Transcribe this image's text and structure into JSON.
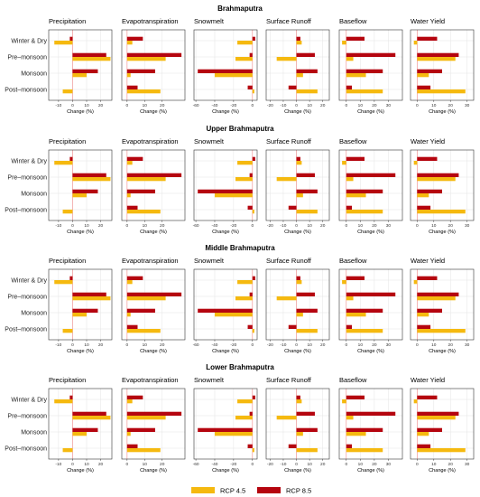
{
  "colors": {
    "rcp45": "#f5b90f",
    "rcp85": "#b5050f",
    "zero": "#f39a9a",
    "grid": "#e4e4e4",
    "frame": "#333333"
  },
  "legend": {
    "items": [
      "RCP 4.5",
      "RCP 8.5"
    ]
  },
  "chart_data": {
    "type": "bar",
    "orientation": "horizontal",
    "xlabel": "Change (%)",
    "categories": [
      "Winter & Dry",
      "Pre–monsoon",
      "Monsoon",
      "Post–monsoon"
    ],
    "series_names": [
      "RCP 4.5",
      "RCP 8.5"
    ],
    "variables": [
      {
        "name": "Precipitation",
        "xlim": [
          -17,
          28
        ],
        "ticks": [
          -10,
          0,
          10,
          20
        ]
      },
      {
        "name": "Evapotranspiration",
        "xlim": [
          -3,
          33
        ],
        "ticks": [
          0,
          10,
          20
        ]
      },
      {
        "name": "Snowmelt",
        "xlim": [
          -62,
          5
        ],
        "ticks": [
          -60,
          -40,
          -20,
          0
        ]
      },
      {
        "name": "Surface Runoff",
        "xlim": [
          -23,
          25
        ],
        "ticks": [
          -20,
          -10,
          0,
          10,
          20
        ]
      },
      {
        "name": "Baseflow",
        "xlim": [
          -5,
          40
        ],
        "ticks": [
          0,
          10,
          20,
          30
        ]
      },
      {
        "name": "Water Yield",
        "xlim": [
          -4,
          34
        ],
        "ticks": [
          0,
          10,
          20,
          30
        ]
      }
    ],
    "regions": [
      {
        "title": "Brahmaputra",
        "data": {
          "Precipitation": {
            "rcp45": [
              -13,
              27,
              10,
              -7
            ],
            "rcp85": [
              -2,
              24,
              18,
              0
            ]
          },
          "Evapotranspiration": {
            "rcp45": [
              3,
              22,
              2,
              19
            ],
            "rcp85": [
              9,
              31,
              16,
              6
            ]
          },
          "Snowmelt": {
            "rcp45": [
              -16,
              -18,
              -40,
              2
            ],
            "rcp85": [
              3,
              -3,
              -58,
              -5
            ]
          },
          "Surface Runoff": {
            "rcp45": [
              4,
              -15,
              5,
              16
            ],
            "rcp85": [
              3,
              14,
              16,
              -6
            ]
          },
          "Baseflow": {
            "rcp45": [
              -3,
              5,
              14,
              26
            ],
            "rcp85": [
              13,
              35,
              26,
              4
            ]
          },
          "Water Yield": {
            "rcp45": [
              -2,
              23,
              7,
              29
            ],
            "rcp85": [
              12,
              25,
              15,
              8
            ]
          }
        }
      },
      {
        "title": "Upper Brahmaputra",
        "data": {
          "Precipitation": {
            "rcp45": [
              -13,
              27,
              10,
              -7
            ],
            "rcp85": [
              -2,
              24,
              18,
              0
            ]
          },
          "Evapotranspiration": {
            "rcp45": [
              3,
              22,
              2,
              19
            ],
            "rcp85": [
              9,
              31,
              16,
              6
            ]
          },
          "Snowmelt": {
            "rcp45": [
              -16,
              -18,
              -40,
              2
            ],
            "rcp85": [
              3,
              -3,
              -58,
              -5
            ]
          },
          "Surface Runoff": {
            "rcp45": [
              4,
              -15,
              5,
              16
            ],
            "rcp85": [
              3,
              14,
              16,
              -6
            ]
          },
          "Baseflow": {
            "rcp45": [
              -3,
              5,
              14,
              26
            ],
            "rcp85": [
              13,
              35,
              26,
              4
            ]
          },
          "Water Yield": {
            "rcp45": [
              -2,
              23,
              7,
              29
            ],
            "rcp85": [
              12,
              25,
              15,
              8
            ]
          }
        }
      },
      {
        "title": "Middle Brahmaputra",
        "data": {
          "Precipitation": {
            "rcp45": [
              -13,
              27,
              10,
              -7
            ],
            "rcp85": [
              -2,
              24,
              18,
              0
            ]
          },
          "Evapotranspiration": {
            "rcp45": [
              3,
              22,
              2,
              19
            ],
            "rcp85": [
              9,
              31,
              16,
              6
            ]
          },
          "Snowmelt": {
            "rcp45": [
              -16,
              -18,
              -40,
              2
            ],
            "rcp85": [
              3,
              -3,
              -58,
              -5
            ]
          },
          "Surface Runoff": {
            "rcp45": [
              4,
              -15,
              5,
              16
            ],
            "rcp85": [
              3,
              14,
              16,
              -6
            ]
          },
          "Baseflow": {
            "rcp45": [
              -3,
              5,
              14,
              26
            ],
            "rcp85": [
              13,
              35,
              26,
              4
            ]
          },
          "Water Yield": {
            "rcp45": [
              -2,
              23,
              7,
              29
            ],
            "rcp85": [
              12,
              25,
              15,
              8
            ]
          }
        }
      },
      {
        "title": "Lower Brahmaputra",
        "data": {
          "Precipitation": {
            "rcp45": [
              -13,
              27,
              10,
              -7
            ],
            "rcp85": [
              -2,
              24,
              18,
              0
            ]
          },
          "Evapotranspiration": {
            "rcp45": [
              3,
              22,
              2,
              19
            ],
            "rcp85": [
              9,
              31,
              16,
              6
            ]
          },
          "Snowmelt": {
            "rcp45": [
              -16,
              -18,
              -40,
              2
            ],
            "rcp85": [
              3,
              -3,
              -58,
              -5
            ]
          },
          "Surface Runoff": {
            "rcp45": [
              4,
              -15,
              5,
              16
            ],
            "rcp85": [
              3,
              14,
              16,
              -6
            ]
          },
          "Baseflow": {
            "rcp45": [
              -3,
              5,
              14,
              26
            ],
            "rcp85": [
              13,
              35,
              26,
              4
            ]
          },
          "Water Yield": {
            "rcp45": [
              -2,
              23,
              7,
              29
            ],
            "rcp85": [
              12,
              25,
              15,
              8
            ]
          }
        }
      }
    ]
  }
}
